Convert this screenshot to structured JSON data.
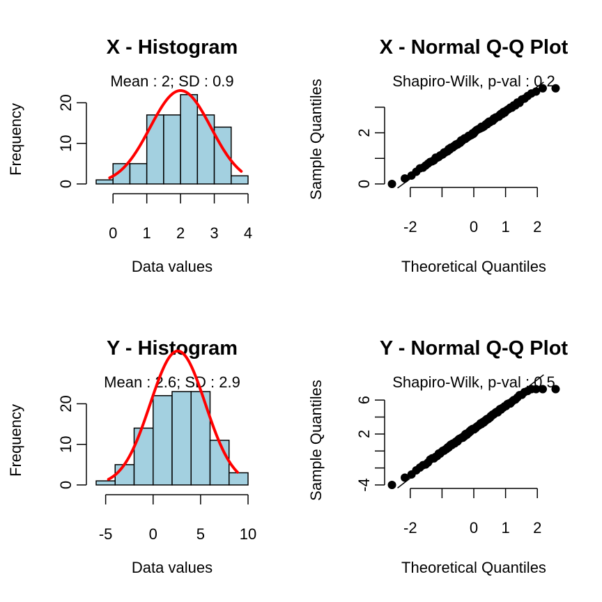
{
  "colors": {
    "bar_fill": "#a3d0e0",
    "bar_stroke": "#000000",
    "curve": "#ff0000",
    "points": "#000000"
  },
  "chart_data": [
    {
      "type": "bar",
      "title": "X - Histogram",
      "subtitle": "Mean : 2; SD : 0.9",
      "xlabel": "Data values",
      "ylabel": "Frequency",
      "bin_edges": [
        -0.5,
        0,
        0.5,
        1,
        1.5,
        2,
        2.5,
        3,
        3.5,
        4
      ],
      "values": [
        1,
        5,
        5,
        17,
        17,
        22,
        17,
        14,
        2
      ],
      "xticks": [
        0,
        1,
        2,
        3,
        4
      ],
      "yticks": [
        0,
        10,
        20
      ],
      "xlim": [
        -0.5,
        4
      ],
      "ylim": [
        0,
        23
      ],
      "normal_curve": {
        "mean": 2,
        "sd": 0.9,
        "scale": 23,
        "from": -0.1,
        "to": 3.8
      }
    },
    {
      "type": "scatter",
      "title": "X - Normal Q-Q Plot",
      "subtitle": "Shapiro-Wilk, p-val : 0.2",
      "xlabel": "Theoretical Quantiles",
      "ylabel": "Sample Quantiles",
      "xticks": [
        -2,
        0,
        1,
        2
      ],
      "xminor": [
        -1
      ],
      "yticks": [
        0,
        2
      ],
      "yminor": [
        1,
        3
      ],
      "xlim": [
        -2.5,
        2.5
      ],
      "ylim": [
        0,
        3.65
      ],
      "n": 100,
      "mean": 2,
      "sd": 0.9
    },
    {
      "type": "bar",
      "title": "Y - Histogram",
      "subtitle": "Mean : 2.6; SD : 2.9",
      "xlabel": "Data values",
      "ylabel": "Frequency",
      "bin_edges": [
        -6,
        -4,
        -2,
        0,
        2,
        4,
        6,
        8,
        10
      ],
      "values": [
        1,
        5,
        14,
        22,
        23,
        23,
        11,
        3
      ],
      "xticks": [
        -5,
        0,
        5,
        10
      ],
      "yticks": [
        0,
        10,
        20
      ],
      "xlim": [
        -6,
        10
      ],
      "ylim": [
        0,
        23
      ],
      "normal_curve": {
        "mean": 2.6,
        "sd": 2.9,
        "scale": 33,
        "from": -4.7,
        "to": 8.9
      }
    },
    {
      "type": "scatter",
      "title": "Y - Normal Q-Q Plot",
      "subtitle": "Shapiro-Wilk, p-val : 0.5",
      "xlabel": "Theoretical Quantiles",
      "ylabel": "Sample Quantiles",
      "xticks": [
        -2,
        0,
        1,
        2
      ],
      "xminor": [
        -1
      ],
      "yticks": [
        -4,
        2,
        6
      ],
      "yminor": [
        -2,
        0,
        4
      ],
      "xlim": [
        -2.5,
        2.5
      ],
      "ylim": [
        -4,
        7
      ],
      "n": 100,
      "mean": 2.6,
      "sd": 2.9
    }
  ]
}
